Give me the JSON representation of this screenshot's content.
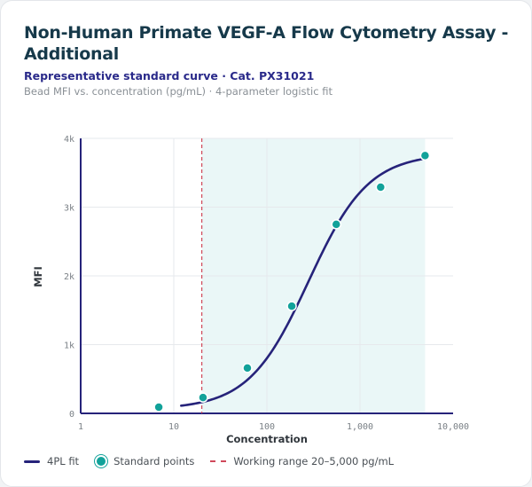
{
  "header": {
    "title": "Non-Human Primate VEGF-A Flow Cytometry Assay - Additional",
    "subtitle": "Representative standard curve · Cat. PX31021",
    "caption": "Bead MFI vs. concentration (pg/mL) · 4-parameter logistic fit"
  },
  "colors": {
    "curve": "#26237a",
    "points": "#12a29a",
    "reference": "#d0495a",
    "band": "#eaf7f7"
  },
  "legend": {
    "fit": "4PL fit",
    "points": "Standard points",
    "range": "Working range 20–5,000 pg/mL"
  },
  "chart_data": {
    "type": "scatter",
    "xlabel": "Concentration",
    "ylabel": "MFI",
    "xscale": "log",
    "xlim": [
      1,
      10000
    ],
    "ylim": [
      0,
      4000
    ],
    "xticks": [
      1,
      10,
      100,
      1000,
      10000
    ],
    "xtick_labels": [
      "1",
      "10",
      "100",
      "1,000",
      "10,000"
    ],
    "yticks": [
      0,
      1000,
      2000,
      3000,
      4000
    ],
    "ytick_labels": [
      "0",
      "1k",
      "2k",
      "3k",
      "4k"
    ],
    "grid": true,
    "legend_position": "bottom-left",
    "series": [
      {
        "name": "Standard points",
        "type": "scatter",
        "x": [
          6.9,
          20.6,
          61.7,
          185,
          556,
          1667,
          5000
        ],
        "y": [
          90,
          230,
          660,
          1560,
          2750,
          3290,
          3750
        ]
      },
      {
        "name": "4PL fit",
        "type": "line",
        "params": {
          "bottom": 60,
          "top": 3780,
          "ec50": 280,
          "hill": 1.35
        },
        "x_range": [
          12,
          5000
        ]
      }
    ],
    "reference_line": {
      "x": 20,
      "label": "Working range 20–5,000 pg/mL"
    },
    "shaded_range": [
      20,
      5000
    ]
  }
}
